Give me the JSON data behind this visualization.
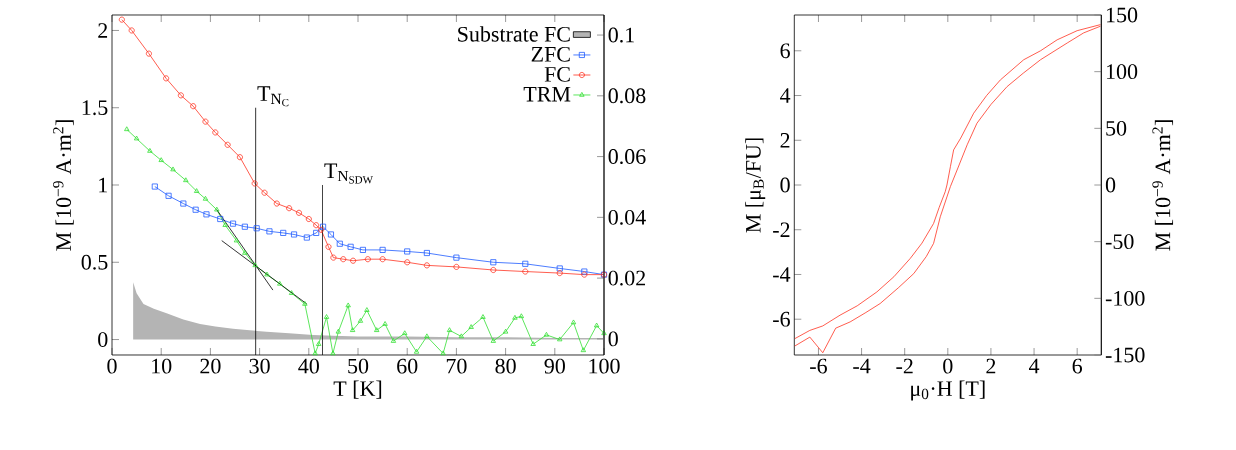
{
  "chart_data": [
    {
      "type": "line",
      "xlabel": "T [K]",
      "ylabel": "M [10$^{−9}$ A·m$^{2}$]",
      "xlim": [
        0,
        100
      ],
      "ylim": [
        -0.1,
        2.1
      ],
      "y2lim": [
        -0.0053,
        0.1066
      ],
      "xticks": [
        0,
        10,
        20,
        30,
        40,
        50,
        60,
        70,
        80,
        90,
        100
      ],
      "yticks": [
        0,
        0.5,
        1,
        1.5,
        2
      ],
      "y2ticks": [
        0,
        0.02,
        0.04,
        0.06,
        0.08,
        0.1
      ],
      "grid": false,
      "legend": "top right",
      "series": [
        {
          "name": "Substrate FC",
          "type": "area",
          "color": "#b4b4b4",
          "marker": "none",
          "x": [
            4.3,
            5.0,
            6.4,
            8.5,
            11.1,
            14.5,
            17.9,
            21.0,
            24.6,
            28.0,
            31.4,
            36.0,
            40.9,
            45.0,
            50.0,
            60.0,
            70.0,
            80.0,
            90.0,
            100.0
          ],
          "values": [
            0.37,
            0.3,
            0.23,
            0.2,
            0.17,
            0.13,
            0.1,
            0.085,
            0.07,
            0.06,
            0.05,
            0.04,
            0.03,
            0.025,
            0.02,
            0.02,
            0.015,
            0.015,
            0.01,
            0.01
          ]
        },
        {
          "name": "ZFC",
          "color": "#1f5cff",
          "marker": "square",
          "x": [
            8.7,
            11.5,
            14.5,
            17.0,
            19.2,
            22.0,
            24.6,
            27.0,
            29.4,
            32.0,
            34.8,
            37.0,
            39.6,
            41.5,
            42.9,
            44.5,
            46.3,
            48.5,
            51.0,
            55.0,
            60.0,
            64.0,
            70.0,
            77.5,
            84.0,
            91.0,
            96.0,
            100.0
          ],
          "values": [
            0.99,
            0.93,
            0.88,
            0.84,
            0.81,
            0.78,
            0.75,
            0.73,
            0.72,
            0.7,
            0.69,
            0.68,
            0.66,
            0.69,
            0.73,
            0.68,
            0.62,
            0.6,
            0.58,
            0.58,
            0.57,
            0.56,
            0.53,
            0.5,
            0.49,
            0.46,
            0.44,
            0.42
          ]
        },
        {
          "name": "FC",
          "color": "#ff3322",
          "marker": "circle",
          "x": [
            2.0,
            4.0,
            7.5,
            11.0,
            14.0,
            16.5,
            19.0,
            21.0,
            23.5,
            26.0,
            29.0,
            31.0,
            33.5,
            36.0,
            38.0,
            40.0,
            41.5,
            42.5,
            44.0,
            45.0,
            47.0,
            49.0,
            52.0,
            55.0,
            60.0,
            64.0,
            70.0,
            77.5,
            84.0,
            91.0,
            96.0,
            100.0
          ],
          "values": [
            2.07,
            2.0,
            1.85,
            1.69,
            1.58,
            1.51,
            1.41,
            1.34,
            1.26,
            1.18,
            1.01,
            0.95,
            0.88,
            0.85,
            0.82,
            0.78,
            0.74,
            0.71,
            0.6,
            0.53,
            0.52,
            0.51,
            0.52,
            0.52,
            0.5,
            0.48,
            0.47,
            0.45,
            0.44,
            0.43,
            0.42,
            0.42
          ]
        },
        {
          "name": "TRM",
          "color": "#33e033",
          "marker": "triangle",
          "x": [
            3.0,
            5.0,
            7.7,
            10.0,
            12.4,
            15.0,
            17.2,
            19.0,
            21.3,
            23.0,
            25.3,
            27.0,
            29.1,
            31.5,
            34.1,
            36.5,
            39.2,
            41.3,
            42.0,
            43.6,
            44.9,
            46.0,
            48.0,
            48.9,
            50.5,
            51.8,
            53.8,
            55.5,
            57.2,
            59.5,
            61.9,
            64.0,
            67.3,
            68.6,
            71.0,
            73.0,
            75.4,
            77.5,
            80.0,
            81.9,
            83.2,
            85.6,
            88.3,
            91.0,
            93.8,
            95.8,
            98.5,
            100.0
          ],
          "values": [
            1.36,
            1.3,
            1.22,
            1.16,
            1.1,
            1.03,
            0.96,
            0.91,
            0.84,
            0.74,
            0.64,
            0.56,
            0.48,
            0.42,
            0.36,
            0.3,
            0.23,
            -0.09,
            -0.03,
            0.145,
            -0.09,
            0.05,
            0.22,
            0.06,
            0.12,
            0.19,
            0.06,
            0.1,
            -0.01,
            0.04,
            -0.08,
            0.02,
            -0.09,
            0.06,
            0.02,
            0.08,
            0.145,
            -0.01,
            0.05,
            0.14,
            0.15,
            -0.03,
            0.03,
            0.0,
            0.11,
            -0.07,
            0.09,
            0.04
          ]
        },
        {
          "color": "#000000",
          "marker": "none",
          "x": [
            21.3,
            32.7
          ],
          "values": [
            0.84,
            0.32
          ]
        },
        {
          "color": "#000000",
          "marker": "none",
          "x": [
            22.3,
            39.6
          ],
          "values": [
            0.64,
            0.23
          ]
        },
        {
          "color": "#000000",
          "marker": "none",
          "x": [
            29.2,
            29.2
          ],
          "values": [
            -0.1,
            1.5
          ]
        },
        {
          "color": "#000000",
          "marker": "none",
          "x": [
            42.8,
            42.8
          ],
          "values": [
            -0.1,
            1.0
          ]
        }
      ],
      "annotations": [
        {
          "text": "\\mathrm{T}_{\\mathrm{N}_{\\mathrm{C}}}",
          "x": 29.2,
          "y": 1.5
        },
        {
          "text": "\\mathrm{T}_{\\mathrm{N}_{\\mathrm{SDW}}}",
          "x": 42.8,
          "y": 1.0
        }
      ]
    },
    {
      "type": "line",
      "xlabel": "μ$_{0}$·H [T]",
      "ylabel": "M [μ$_{B}$/FU]",
      "y2label": "M [10$^{−9}$ A·m$^{2}$]",
      "xlim": [
        -7.12,
        7.12
      ],
      "ylim": [
        -7.6,
        7.6
      ],
      "y2lim": [
        -150,
        150
      ],
      "xticks": [
        -6,
        -4,
        -2,
        0,
        2,
        4,
        6
      ],
      "yticks": [
        -6,
        -4,
        -2,
        0,
        2,
        4,
        6
      ],
      "y2ticks": [
        -150,
        -100,
        -50,
        0,
        50,
        100,
        150
      ],
      "grid": false,
      "legend": false,
      "marker": "none",
      "series": [
        {
          "color": "#ff3322",
          "x": [
            7.08,
            6.0,
            5.07,
            4.3,
            3.52,
            2.44,
            1.8,
            1.2,
            0.6,
            0.27,
            0.12,
            -0.04,
            -0.12,
            -0.4,
            -0.66,
            -1.2,
            -1.74,
            -2.5,
            -3.29,
            -4.2,
            -5.0,
            -5.8,
            -6.4,
            -7.1
          ],
          "values": [
            7.17,
            6.9,
            6.49,
            6.0,
            5.6,
            4.7,
            4.0,
            3.21,
            2.1,
            1.57,
            0.82,
            0.0,
            -0.3,
            -1.0,
            -1.72,
            -2.6,
            -3.28,
            -4.1,
            -4.78,
            -5.4,
            -5.82,
            -6.3,
            -6.5,
            -6.87
          ]
        },
        {
          "color": "#ff3322",
          "x": [
            -7.1,
            -6.4,
            -5.8,
            -5.2,
            -4.53,
            -3.8,
            -3.14,
            -2.3,
            -1.58,
            -1.0,
            -0.66,
            -0.35,
            0.12,
            0.43,
            0.9,
            1.35,
            2.0,
            2.75,
            3.5,
            4.3,
            5.54,
            6.3,
            7.08
          ],
          "values": [
            -7.2,
            -6.8,
            -7.5,
            -6.4,
            -6.12,
            -5.7,
            -5.3,
            -4.6,
            -3.96,
            -3.2,
            -2.61,
            -1.42,
            -0.07,
            0.67,
            1.8,
            2.76,
            3.6,
            4.4,
            5.0,
            5.6,
            6.35,
            6.8,
            7.1
          ]
        }
      ]
    }
  ]
}
